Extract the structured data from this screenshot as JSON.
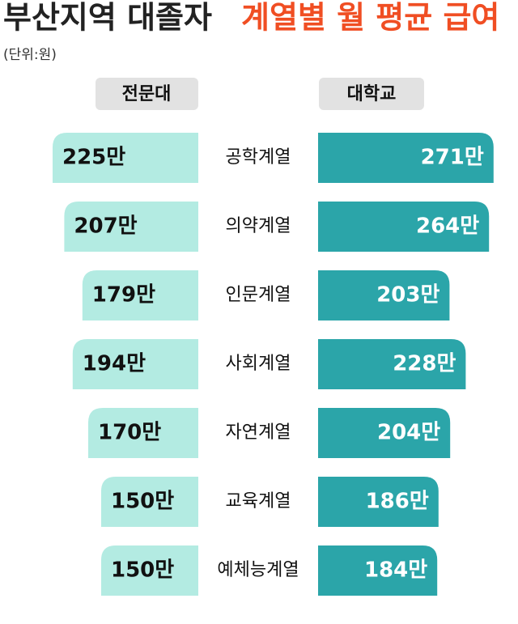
{
  "chart_data": {
    "type": "butterfly-bar",
    "title": "부산지역 대졸자",
    "title_highlight": "계열별 월 평균 급여",
    "subtitle": "(단위:원)",
    "categories": [
      "공학계열",
      "의약계열",
      "인문계열",
      "사회계열",
      "자연계열",
      "교육계열",
      "예체능계열"
    ],
    "series": [
      {
        "name": "전문대",
        "color": "#b3ebe2",
        "values": [
          225,
          207,
          179,
          194,
          170,
          150,
          150
        ],
        "value_labels": [
          "225만",
          "207만",
          "179만",
          "194만",
          "170만",
          "150만",
          "150만"
        ]
      },
      {
        "name": "대학교",
        "color": "#2ba5a9",
        "values": [
          271,
          264,
          203,
          228,
          204,
          186,
          184
        ],
        "value_labels": [
          "271만",
          "264만",
          "203만",
          "228만",
          "204만",
          "186만",
          "184만"
        ]
      }
    ]
  }
}
